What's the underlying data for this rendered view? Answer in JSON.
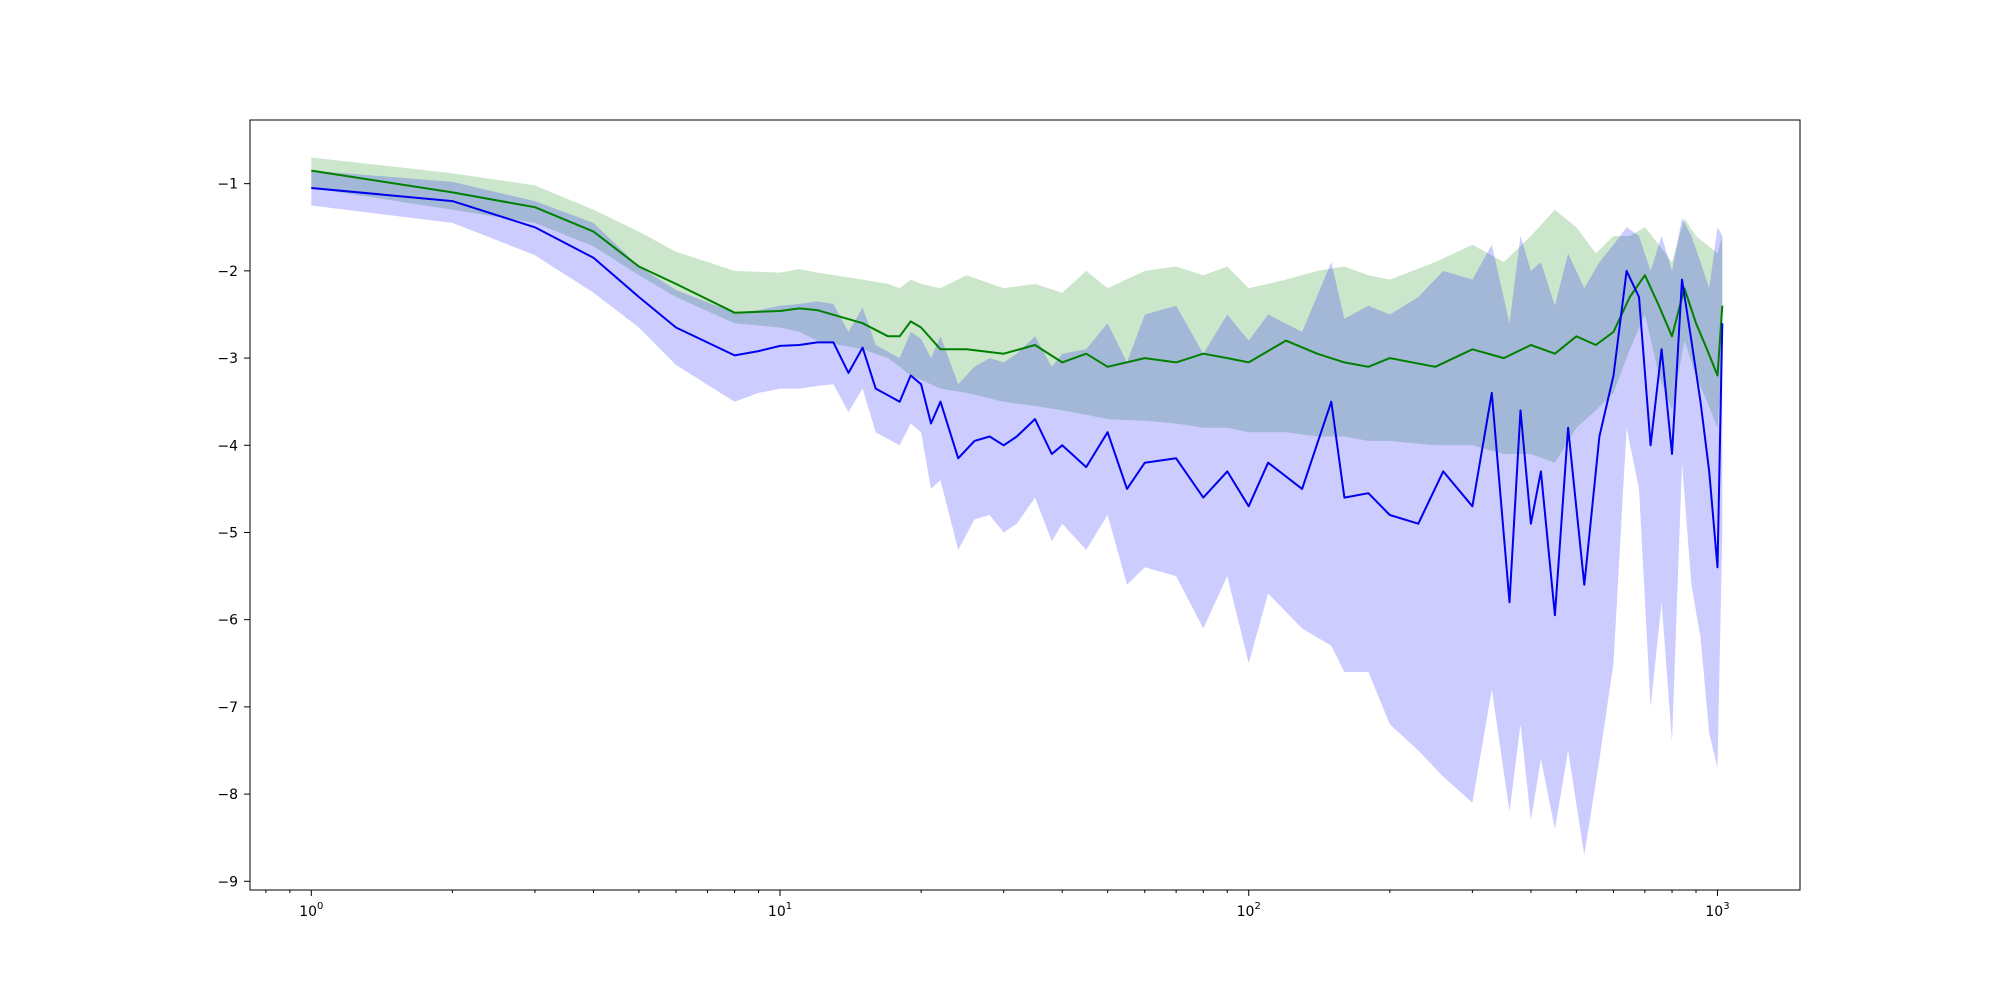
{
  "chart_data": {
    "type": "line",
    "title": "",
    "xlabel": "",
    "ylabel": "",
    "x_scale": "log",
    "xlim": [
      0.74,
      1500
    ],
    "ylim": [
      -9.1,
      -0.27
    ],
    "x_ticks": [
      {
        "value": 1,
        "base": "10",
        "exp": "0"
      },
      {
        "value": 10,
        "base": "10",
        "exp": "1"
      },
      {
        "value": 100,
        "base": "10",
        "exp": "2"
      },
      {
        "value": 1000,
        "base": "10",
        "exp": "3"
      }
    ],
    "y_ticks": [
      {
        "value": -1,
        "label": "−1"
      },
      {
        "value": -2,
        "label": "−2"
      },
      {
        "value": -3,
        "label": "−3"
      },
      {
        "value": -4,
        "label": "−4"
      },
      {
        "value": -5,
        "label": "−5"
      },
      {
        "value": -6,
        "label": "−6"
      },
      {
        "value": -7,
        "label": "−7"
      },
      {
        "value": -8,
        "label": "−8"
      },
      {
        "value": -9,
        "label": "−9"
      }
    ],
    "grid": false,
    "legend": "none",
    "series": [
      {
        "color": "#008000",
        "band_color": "#008000",
        "band_opacity": 0.2,
        "x": [
          1,
          2,
          3,
          4,
          5,
          6,
          8,
          10,
          11,
          12,
          15,
          17,
          18,
          19,
          20,
          22,
          25,
          30,
          35,
          40,
          45,
          50,
          60,
          70,
          80,
          90,
          100,
          120,
          140,
          160,
          180,
          200,
          250,
          300,
          350,
          400,
          450,
          500,
          550,
          600,
          650,
          700,
          750,
          800,
          850,
          900,
          950,
          1000,
          1024
        ],
        "y": [
          -0.85,
          -1.1,
          -1.27,
          -1.55,
          -1.95,
          -2.15,
          -2.48,
          -2.46,
          -2.43,
          -2.45,
          -2.6,
          -2.75,
          -2.75,
          -2.58,
          -2.65,
          -2.9,
          -2.9,
          -2.95,
          -2.85,
          -3.05,
          -2.95,
          -3.1,
          -3.0,
          -3.05,
          -2.95,
          -3.0,
          -3.05,
          -2.8,
          -2.95,
          -3.05,
          -3.1,
          -3.0,
          -3.1,
          -2.9,
          -3.0,
          -2.85,
          -2.95,
          -2.75,
          -2.85,
          -2.7,
          -2.3,
          -2.05,
          -2.4,
          -2.75,
          -2.2,
          -2.6,
          -2.9,
          -3.2,
          -2.4
        ],
        "lower": [
          -1.05,
          -1.3,
          -1.45,
          -1.72,
          -2.05,
          -2.3,
          -2.6,
          -2.65,
          -2.7,
          -2.8,
          -2.9,
          -3.0,
          -3.1,
          -3.2,
          -3.25,
          -3.35,
          -3.4,
          -3.5,
          -3.55,
          -3.6,
          -3.65,
          -3.7,
          -3.72,
          -3.75,
          -3.8,
          -3.8,
          -3.85,
          -3.85,
          -3.9,
          -3.9,
          -3.95,
          -3.95,
          -4.0,
          -4.0,
          -4.1,
          -4.1,
          -4.2,
          -3.8,
          -3.6,
          -3.4,
          -2.9,
          -2.5,
          -3.2,
          -3.6,
          -2.8,
          -3.2,
          -3.5,
          -3.8,
          -3.0
        ],
        "upper": [
          -0.7,
          -0.88,
          -1.02,
          -1.3,
          -1.55,
          -1.78,
          -2.0,
          -2.02,
          -1.98,
          -2.02,
          -2.1,
          -2.15,
          -2.2,
          -2.1,
          -2.15,
          -2.2,
          -2.05,
          -2.2,
          -2.15,
          -2.25,
          -2.0,
          -2.2,
          -2.0,
          -1.95,
          -2.05,
          -1.95,
          -2.2,
          -2.1,
          -2.0,
          -1.95,
          -2.05,
          -2.1,
          -1.9,
          -1.7,
          -1.9,
          -1.6,
          -1.3,
          -1.5,
          -1.8,
          -1.6,
          -1.6,
          -1.5,
          -1.7,
          -1.9,
          -1.4,
          -1.6,
          -1.7,
          -1.8,
          -1.6
        ]
      },
      {
        "color": "#0000ee",
        "band_color": "#0000ff",
        "band_opacity": 0.2,
        "x": [
          1,
          2,
          3,
          4,
          5,
          6,
          8,
          9,
          10,
          11,
          12,
          13,
          14,
          15,
          16,
          18,
          19,
          20,
          21,
          22,
          24,
          26,
          28,
          30,
          32,
          35,
          38,
          40,
          45,
          50,
          55,
          60,
          70,
          80,
          90,
          100,
          110,
          130,
          150,
          160,
          180,
          200,
          230,
          260,
          300,
          330,
          360,
          380,
          400,
          420,
          450,
          480,
          520,
          560,
          600,
          640,
          680,
          720,
          760,
          800,
          840,
          880,
          920,
          960,
          1000,
          1024
        ],
        "y": [
          -1.05,
          -1.2,
          -1.5,
          -1.85,
          -2.3,
          -2.65,
          -2.97,
          -2.92,
          -2.86,
          -2.85,
          -2.82,
          -2.82,
          -3.17,
          -2.88,
          -3.35,
          -3.5,
          -3.2,
          -3.3,
          -3.75,
          -3.5,
          -4.15,
          -3.95,
          -3.9,
          -4.0,
          -3.9,
          -3.7,
          -4.1,
          -4.0,
          -4.25,
          -3.85,
          -4.5,
          -4.2,
          -4.15,
          -4.6,
          -4.3,
          -4.7,
          -4.2,
          -4.5,
          -3.5,
          -4.6,
          -4.55,
          -4.8,
          -4.9,
          -4.3,
          -4.7,
          -3.4,
          -5.8,
          -3.6,
          -4.9,
          -4.3,
          -5.95,
          -3.8,
          -5.6,
          -3.9,
          -3.2,
          -2.0,
          -2.3,
          -4.0,
          -2.9,
          -4.1,
          -2.1,
          -2.8,
          -3.5,
          -4.3,
          -5.4,
          -2.6
        ],
        "lower": [
          -1.25,
          -1.45,
          -1.82,
          -2.25,
          -2.65,
          -3.08,
          -3.5,
          -3.4,
          -3.35,
          -3.35,
          -3.32,
          -3.3,
          -3.62,
          -3.35,
          -3.85,
          -4.0,
          -3.75,
          -3.85,
          -4.5,
          -4.4,
          -5.2,
          -4.85,
          -4.8,
          -5.0,
          -4.9,
          -4.6,
          -5.1,
          -4.9,
          -5.2,
          -4.8,
          -5.6,
          -5.4,
          -5.5,
          -6.1,
          -5.5,
          -6.5,
          -5.7,
          -6.1,
          -6.3,
          -6.6,
          -6.6,
          -7.2,
          -7.5,
          -7.8,
          -8.1,
          -6.8,
          -8.2,
          -7.2,
          -8.3,
          -7.6,
          -8.4,
          -7.5,
          -8.7,
          -7.6,
          -6.5,
          -3.8,
          -4.5,
          -7.0,
          -5.8,
          -7.4,
          -4.2,
          -5.6,
          -6.2,
          -7.3,
          -7.7,
          -5.0
        ],
        "upper": [
          -0.85,
          -0.98,
          -1.2,
          -1.45,
          -1.95,
          -2.22,
          -2.48,
          -2.45,
          -2.4,
          -2.38,
          -2.35,
          -2.38,
          -2.7,
          -2.42,
          -2.85,
          -3.0,
          -2.7,
          -2.78,
          -3.0,
          -2.75,
          -3.3,
          -3.1,
          -3.0,
          -3.05,
          -2.95,
          -2.75,
          -3.1,
          -2.95,
          -2.9,
          -2.6,
          -3.05,
          -2.5,
          -2.4,
          -2.95,
          -2.5,
          -2.8,
          -2.5,
          -2.7,
          -1.9,
          -2.55,
          -2.4,
          -2.5,
          -2.3,
          -2.0,
          -2.1,
          -1.7,
          -2.6,
          -1.6,
          -2.0,
          -1.9,
          -2.4,
          -1.8,
          -2.2,
          -1.9,
          -1.7,
          -1.5,
          -1.6,
          -2.0,
          -1.6,
          -2.0,
          -1.4,
          -1.6,
          -1.9,
          -2.2,
          -1.5,
          -1.6
        ]
      }
    ]
  }
}
